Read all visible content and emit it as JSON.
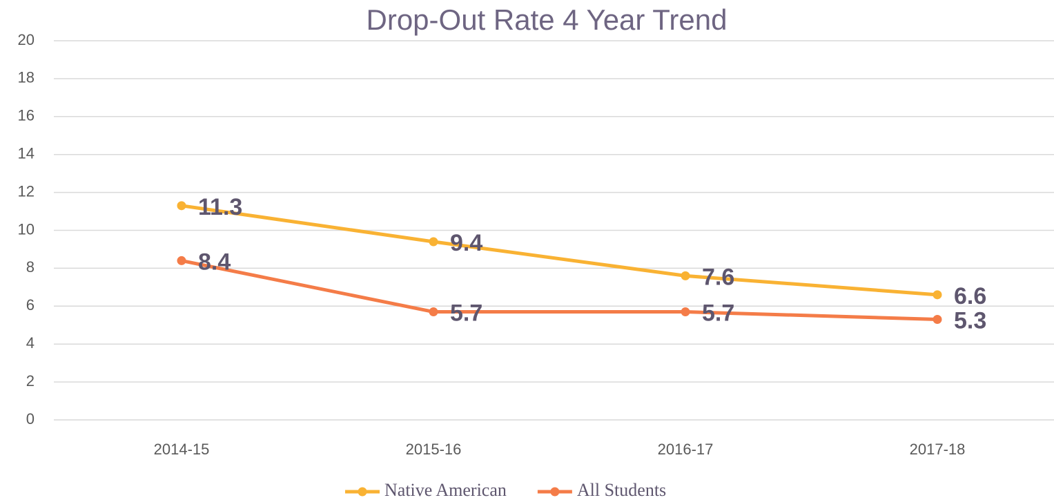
{
  "chart_data": {
    "type": "line",
    "title": "Drop-Out Rate 4 Year Trend",
    "categories": [
      "2014-15",
      "2015-16",
      "2016-17",
      "2017-18"
    ],
    "series": [
      {
        "name": "Native American",
        "color": "#f9b233",
        "values": [
          11.3,
          9.4,
          7.6,
          6.6
        ]
      },
      {
        "name": "All Students",
        "color": "#f47c48",
        "values": [
          8.4,
          5.7,
          5.7,
          5.3
        ]
      }
    ],
    "ylim": [
      0,
      20
    ],
    "yticks": [
      0,
      2,
      4,
      6,
      8,
      10,
      12,
      14,
      16,
      18,
      20
    ],
    "grid": true,
    "legend": "bottom"
  }
}
